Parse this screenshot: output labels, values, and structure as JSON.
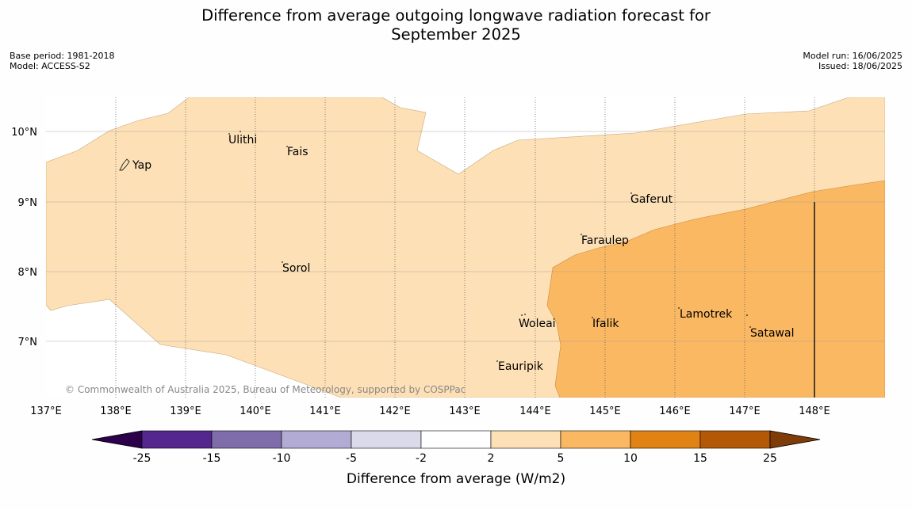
{
  "title_line1": "Difference from average outgoing longwave radiation forecast for",
  "title_line2": "September 2025",
  "meta_left": {
    "base_period": "Base period: 1981-2018",
    "model": "Model: ACCESS-S2"
  },
  "meta_right": {
    "model_run": "Model run: 16/06/2025",
    "issued": "Issued: 18/06/2025"
  },
  "copyright": "© Commonwealth of Australia 2025, Bureau of Meteorology, supported by COSPPac",
  "map": {
    "lon_ticks": [
      "137°E",
      "138°E",
      "139°E",
      "140°E",
      "141°E",
      "142°E",
      "143°E",
      "144°E",
      "145°E",
      "146°E",
      "147°E",
      "148°E"
    ],
    "lat_ticks": [
      "10°N",
      "9°N",
      "8°N",
      "7°N"
    ],
    "places": [
      "Ulithi",
      "Fais",
      "Yap",
      "Gaferut",
      "Faraulep",
      "Sorol",
      "Woleai",
      "Ifalik",
      "Lamotrek",
      "Satawal",
      "Eauripik"
    ]
  },
  "colorbar": {
    "label": "Difference from average (W/m2)",
    "ticks": [
      "-25",
      "-15",
      "-10",
      "-5",
      "-2",
      "2",
      "5",
      "10",
      "15",
      "25"
    ],
    "colors": [
      "#54278f",
      "#7f6dab",
      "#b2abd3",
      "#dadaeb",
      "#ffffff",
      "#fde0b6",
      "#fbb862",
      "#e08214",
      "#b35806"
    ],
    "under_color": "#2d004b",
    "over_color": "#7f3b08"
  }
}
